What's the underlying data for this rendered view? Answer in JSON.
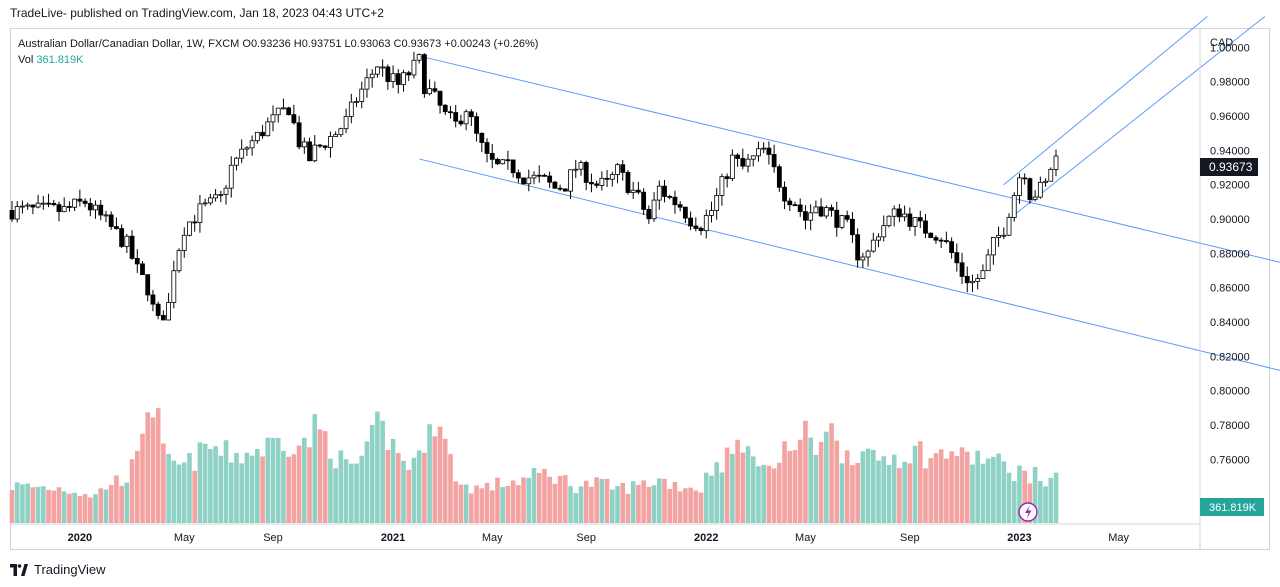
{
  "header": {
    "published": "TradeLive- published on TradingView.com, Jan 18, 2023 04:43 UTC+2"
  },
  "legend": {
    "symbol": "Australian Dollar/Canadian Dollar, 1W, FXCM",
    "open_label": "O",
    "open": "0.93236",
    "high_label": "H",
    "high": "0.93751",
    "low_label": "L",
    "low": "0.93063",
    "close_label": "C",
    "close": "0.93673",
    "change": "+0.00243 (+0.26%)",
    "vol_label": "Vol",
    "vol": "361.819K"
  },
  "footer": {
    "brand": "TradingView"
  },
  "chart_data": {
    "type": "candlestick",
    "currency": "CAD",
    "y_ticks": [
      "1.00000",
      "0.98000",
      "0.96000",
      "0.94000",
      "0.92000",
      "0.90000",
      "0.88000",
      "0.86000",
      "0.84000",
      "0.82000",
      "0.80000",
      "0.78000",
      "0.76000"
    ],
    "ylim": [
      0.7538,
      1.0065
    ],
    "x_ticks": [
      "2020",
      "May",
      "Sep",
      "2021",
      "May",
      "Sep",
      "2022",
      "May",
      "Sep",
      "2023",
      "May"
    ],
    "last_price_label": "0.93673",
    "last_volume_label": "361.819K",
    "colors": {
      "up": "#ffffff",
      "down": "#000000",
      "outline": "#000000",
      "vol_up": "#26a69a",
      "vol_down": "#ef5350",
      "channel": "#2962ff",
      "last_price_bg": "#131722",
      "last_vol_bg": "#26a69a"
    },
    "anchors": [
      [
        0,
        0.905
      ],
      [
        6,
        0.905
      ],
      [
        10,
        0.905
      ],
      [
        14,
        0.91
      ],
      [
        18,
        0.898
      ],
      [
        22,
        0.885
      ],
      [
        24,
        0.87
      ],
      [
        26,
        0.86
      ],
      [
        27,
        0.848
      ],
      [
        28,
        0.84
      ],
      [
        30,
        0.85
      ],
      [
        31,
        0.873
      ],
      [
        33,
        0.895
      ],
      [
        36,
        0.905
      ],
      [
        40,
        0.912
      ],
      [
        42,
        0.93
      ],
      [
        45,
        0.942
      ],
      [
        47,
        0.948
      ],
      [
        49,
        0.955
      ],
      [
        51,
        0.96
      ],
      [
        53,
        0.965
      ],
      [
        54,
        0.955
      ],
      [
        55,
        0.945
      ],
      [
        57,
        0.935
      ],
      [
        58,
        0.94
      ],
      [
        60,
        0.945
      ],
      [
        62,
        0.95
      ],
      [
        64,
        0.957
      ],
      [
        66,
        0.97
      ],
      [
        68,
        0.98
      ],
      [
        69,
        0.985
      ],
      [
        70,
        0.99
      ],
      [
        72,
        0.983
      ],
      [
        74,
        0.978
      ],
      [
        76,
        0.985
      ],
      [
        78,
        0.992
      ],
      [
        79,
        0.978
      ],
      [
        81,
        0.97
      ],
      [
        83,
        0.96
      ],
      [
        85,
        0.955
      ],
      [
        87,
        0.965
      ],
      [
        89,
        0.948
      ],
      [
        91,
        0.935
      ],
      [
        93,
        0.93
      ],
      [
        96,
        0.93
      ],
      [
        98,
        0.925
      ],
      [
        102,
        0.922
      ],
      [
        104,
        0.918
      ],
      [
        106,
        0.92
      ],
      [
        108,
        0.93
      ],
      [
        110,
        0.926
      ],
      [
        112,
        0.92
      ],
      [
        114,
        0.92
      ],
      [
        116,
        0.928
      ],
      [
        118,
        0.92
      ],
      [
        120,
        0.912
      ],
      [
        122,
        0.9
      ],
      [
        124,
        0.918
      ],
      [
        126,
        0.912
      ],
      [
        128,
        0.908
      ],
      [
        130,
        0.9
      ],
      [
        132,
        0.897
      ],
      [
        134,
        0.905
      ],
      [
        136,
        0.92
      ],
      [
        138,
        0.935
      ],
      [
        140,
        0.93
      ],
      [
        142,
        0.935
      ],
      [
        144,
        0.94
      ],
      [
        146,
        0.928
      ],
      [
        148,
        0.915
      ],
      [
        150,
        0.91
      ],
      [
        152,
        0.9
      ],
      [
        154,
        0.908
      ],
      [
        156,
        0.905
      ],
      [
        158,
        0.9
      ],
      [
        160,
        0.895
      ],
      [
        162,
        0.88
      ],
      [
        164,
        0.88
      ],
      [
        166,
        0.893
      ],
      [
        168,
        0.9
      ],
      [
        170,
        0.905
      ],
      [
        172,
        0.9
      ],
      [
        174,
        0.895
      ],
      [
        176,
        0.893
      ],
      [
        178,
        0.89
      ],
      [
        180,
        0.88
      ],
      [
        182,
        0.868
      ],
      [
        184,
        0.863
      ],
      [
        186,
        0.868
      ],
      [
        188,
        0.885
      ],
      [
        190,
        0.895
      ],
      [
        191,
        0.905
      ],
      [
        192,
        0.915
      ],
      [
        193,
        0.925
      ],
      [
        194,
        0.928
      ],
      [
        195,
        0.915
      ],
      [
        196,
        0.915
      ],
      [
        198,
        0.92
      ],
      [
        199,
        0.93
      ],
      [
        200,
        0.9367
      ]
    ],
    "volume_profile": [
      [
        0,
        0.3
      ],
      [
        10,
        0.28
      ],
      [
        16,
        0.22
      ],
      [
        18,
        0.3
      ],
      [
        22,
        0.38
      ],
      [
        24,
        0.5
      ],
      [
        25,
        0.8
      ],
      [
        26,
        1.0
      ],
      [
        27,
        0.95
      ],
      [
        28,
        0.8
      ],
      [
        29,
        0.55
      ],
      [
        30,
        0.48
      ],
      [
        33,
        0.45
      ],
      [
        36,
        0.55
      ],
      [
        38,
        0.62
      ],
      [
        40,
        0.56
      ],
      [
        44,
        0.55
      ],
      [
        48,
        0.6
      ],
      [
        52,
        0.68
      ],
      [
        56,
        0.62
      ],
      [
        58,
        0.75
      ],
      [
        60,
        0.7
      ],
      [
        62,
        0.55
      ],
      [
        64,
        0.45
      ],
      [
        66,
        0.48
      ],
      [
        68,
        0.55
      ],
      [
        70,
        0.78
      ],
      [
        72,
        0.7
      ],
      [
        74,
        0.55
      ],
      [
        76,
        0.48
      ],
      [
        78,
        0.5
      ],
      [
        80,
        0.9
      ],
      [
        82,
        0.75
      ],
      [
        84,
        0.5
      ],
      [
        86,
        0.3
      ],
      [
        90,
        0.28
      ],
      [
        94,
        0.32
      ],
      [
        98,
        0.35
      ],
      [
        102,
        0.4
      ],
      [
        104,
        0.38
      ],
      [
        108,
        0.3
      ],
      [
        112,
        0.32
      ],
      [
        116,
        0.28
      ],
      [
        120,
        0.3
      ],
      [
        124,
        0.35
      ],
      [
        128,
        0.3
      ],
      [
        132,
        0.28
      ],
      [
        134,
        0.45
      ],
      [
        138,
        0.55
      ],
      [
        140,
        0.7
      ],
      [
        142,
        0.45
      ],
      [
        144,
        0.58
      ],
      [
        146,
        0.42
      ],
      [
        148,
        0.58
      ],
      [
        150,
        0.62
      ],
      [
        152,
        0.7
      ],
      [
        154,
        0.6
      ],
      [
        156,
        0.86
      ],
      [
        158,
        0.6
      ],
      [
        160,
        0.58
      ],
      [
        162,
        0.58
      ],
      [
        164,
        0.5
      ],
      [
        166,
        0.52
      ],
      [
        170,
        0.55
      ],
      [
        174,
        0.58
      ],
      [
        176,
        0.52
      ],
      [
        178,
        0.54
      ],
      [
        180,
        0.6
      ],
      [
        182,
        0.52
      ],
      [
        184,
        0.54
      ],
      [
        188,
        0.5
      ],
      [
        192,
        0.42
      ],
      [
        196,
        0.38
      ],
      [
        198,
        0.32
      ],
      [
        200,
        0.5
      ]
    ],
    "channel_lines": [
      {
        "name": "descending-channel-upper",
        "points": [
          [
            78,
            0.995
          ],
          [
            244,
            0.874
          ]
        ]
      },
      {
        "name": "descending-channel-lower",
        "points": [
          [
            78,
            0.935
          ],
          [
            244,
            0.811
          ]
        ]
      },
      {
        "name": "ascending-channel-upper",
        "points": [
          [
            190,
            0.92
          ],
          [
            229,
            1.018
          ]
        ]
      },
      {
        "name": "ascending-channel-lower",
        "points": [
          [
            191,
            0.9
          ],
          [
            240,
            1.018
          ]
        ]
      }
    ],
    "bar_count": 201
  }
}
